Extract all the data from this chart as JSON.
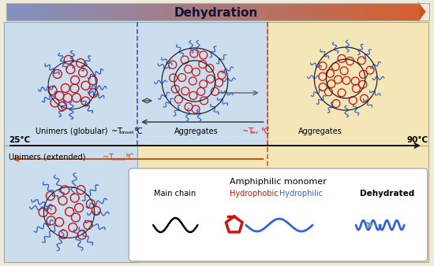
{
  "title": "Dehydration",
  "bg_outer": "#f0ead8",
  "bg_blue": "#ccdded",
  "bg_yellow": "#f5e6b8",
  "bg_legend": "#fefefe",
  "temp_left": "25°C",
  "temp_right": "90°C",
  "label_unimers_glob": "Unimers (globular)",
  "label_aggregates1": "Aggregates",
  "label_aggregates2": "Aggregates",
  "label_unimers_ext": "Unimers (extended)",
  "legend_title": "Amphiphilic monomer",
  "legend_main": "Main chain",
  "legend_hydrophobic": "Hydrophobic",
  "legend_hydrophilic": "Hydrophilic",
  "legend_dehydrated": "Dehydrated",
  "hydrophobic_color": "#cc1111",
  "hydrophilic_color": "#3366cc",
  "circle_color": "#cc1111",
  "line_color": "#3366cc",
  "black_color": "#222222",
  "blue_dash_color": "#4455bb",
  "red_dash_color": "#cc1111",
  "orange_arrow_color": "#cc4400",
  "arrow_fill_left": "#9999cc",
  "arrow_fill_right": "#cc5522"
}
